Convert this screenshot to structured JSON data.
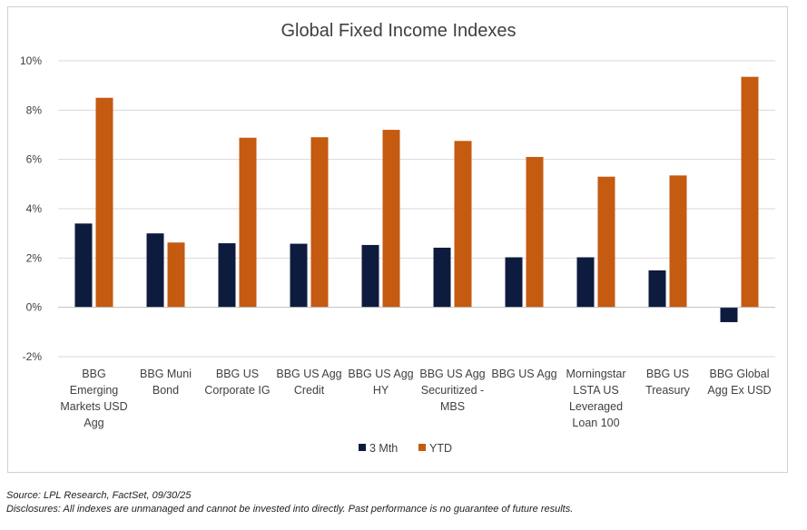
{
  "chart_data": {
    "type": "bar",
    "title": "Global Fixed Income Indexes",
    "categories": [
      [
        "BBG",
        "Emerging",
        "Markets USD",
        "Agg"
      ],
      [
        "BBG Muni",
        "Bond"
      ],
      [
        "BBG US",
        "Corporate IG"
      ],
      [
        "BBG US Agg",
        "Credit"
      ],
      [
        "BBG US Agg",
        "HY"
      ],
      [
        "BBG US Agg",
        "Securitized -",
        "MBS"
      ],
      [
        "BBG US Agg"
      ],
      [
        "Morningstar",
        "LSTA US",
        "Leveraged",
        "Loan 100"
      ],
      [
        "BBG US",
        "Treasury"
      ],
      [
        "BBG Global",
        "Agg Ex USD"
      ]
    ],
    "series": [
      {
        "name": "3 Mth",
        "color": "#0d1b3e",
        "values": [
          3.4,
          3.0,
          2.6,
          2.58,
          2.53,
          2.42,
          2.03,
          2.03,
          1.5,
          -0.6
        ]
      },
      {
        "name": "YTD",
        "color": "#c55a11",
        "values": [
          8.5,
          2.63,
          6.88,
          6.9,
          7.2,
          6.75,
          6.1,
          5.3,
          5.35,
          9.35
        ]
      }
    ],
    "ylim": [
      -2,
      10
    ],
    "yticks": [
      -2,
      0,
      2,
      4,
      6,
      8,
      10
    ],
    "ytick_suffix": "%",
    "xlabel": "",
    "ylabel": "",
    "grid": true,
    "legend": "bottom"
  },
  "footnotes": {
    "source": "Source: LPL Research, FactSet, 09/30/25",
    "disclosure": "Disclosures: All indexes are unmanaged and cannot be invested into directly. Past performance is no guarantee of future results."
  }
}
